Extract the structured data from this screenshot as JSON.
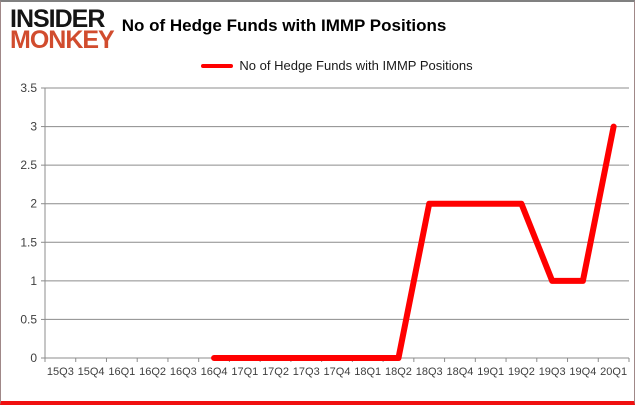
{
  "header": {
    "logo_line1": "INSIDER",
    "logo_line2": "MONKEY",
    "title": "No of Hedge Funds with IMMP Positions"
  },
  "legend": {
    "label": "No of Hedge Funds with IMMP Positions",
    "marker_color": "#FF0000"
  },
  "chart_data": {
    "type": "line",
    "title": "No of Hedge Funds with IMMP Positions",
    "categories": [
      "15Q3",
      "15Q4",
      "16Q1",
      "16Q2",
      "16Q3",
      "16Q4",
      "17Q1",
      "17Q2",
      "17Q3",
      "17Q4",
      "18Q1",
      "18Q2",
      "18Q3",
      "18Q4",
      "19Q1",
      "19Q2",
      "19Q3",
      "19Q4",
      "20Q1"
    ],
    "series": [
      {
        "name": "No of Hedge Funds with IMMP Positions",
        "color": "#FF0000",
        "values": [
          null,
          null,
          null,
          null,
          null,
          0,
          0,
          0,
          0,
          0,
          0,
          0,
          2,
          2,
          2,
          2,
          1,
          1,
          3
        ]
      }
    ],
    "xlabel": "",
    "ylabel": "",
    "ylim": [
      0,
      3.5
    ],
    "ytick_step": 0.5,
    "ytick_labels": [
      "0",
      "0.5",
      "1",
      "1.5",
      "2",
      "2.5",
      "3",
      "3.5"
    ],
    "grid": "horizontal",
    "legend_position": "top"
  },
  "colors": {
    "line_red": "#FF0000",
    "logo_black": "#151515",
    "logo_orange": "#D14C2E",
    "grid_gray": "#8C8C8C",
    "axis_label": "#3F3F3F",
    "border_top": "#808080",
    "border_bottom": "#F01010"
  }
}
